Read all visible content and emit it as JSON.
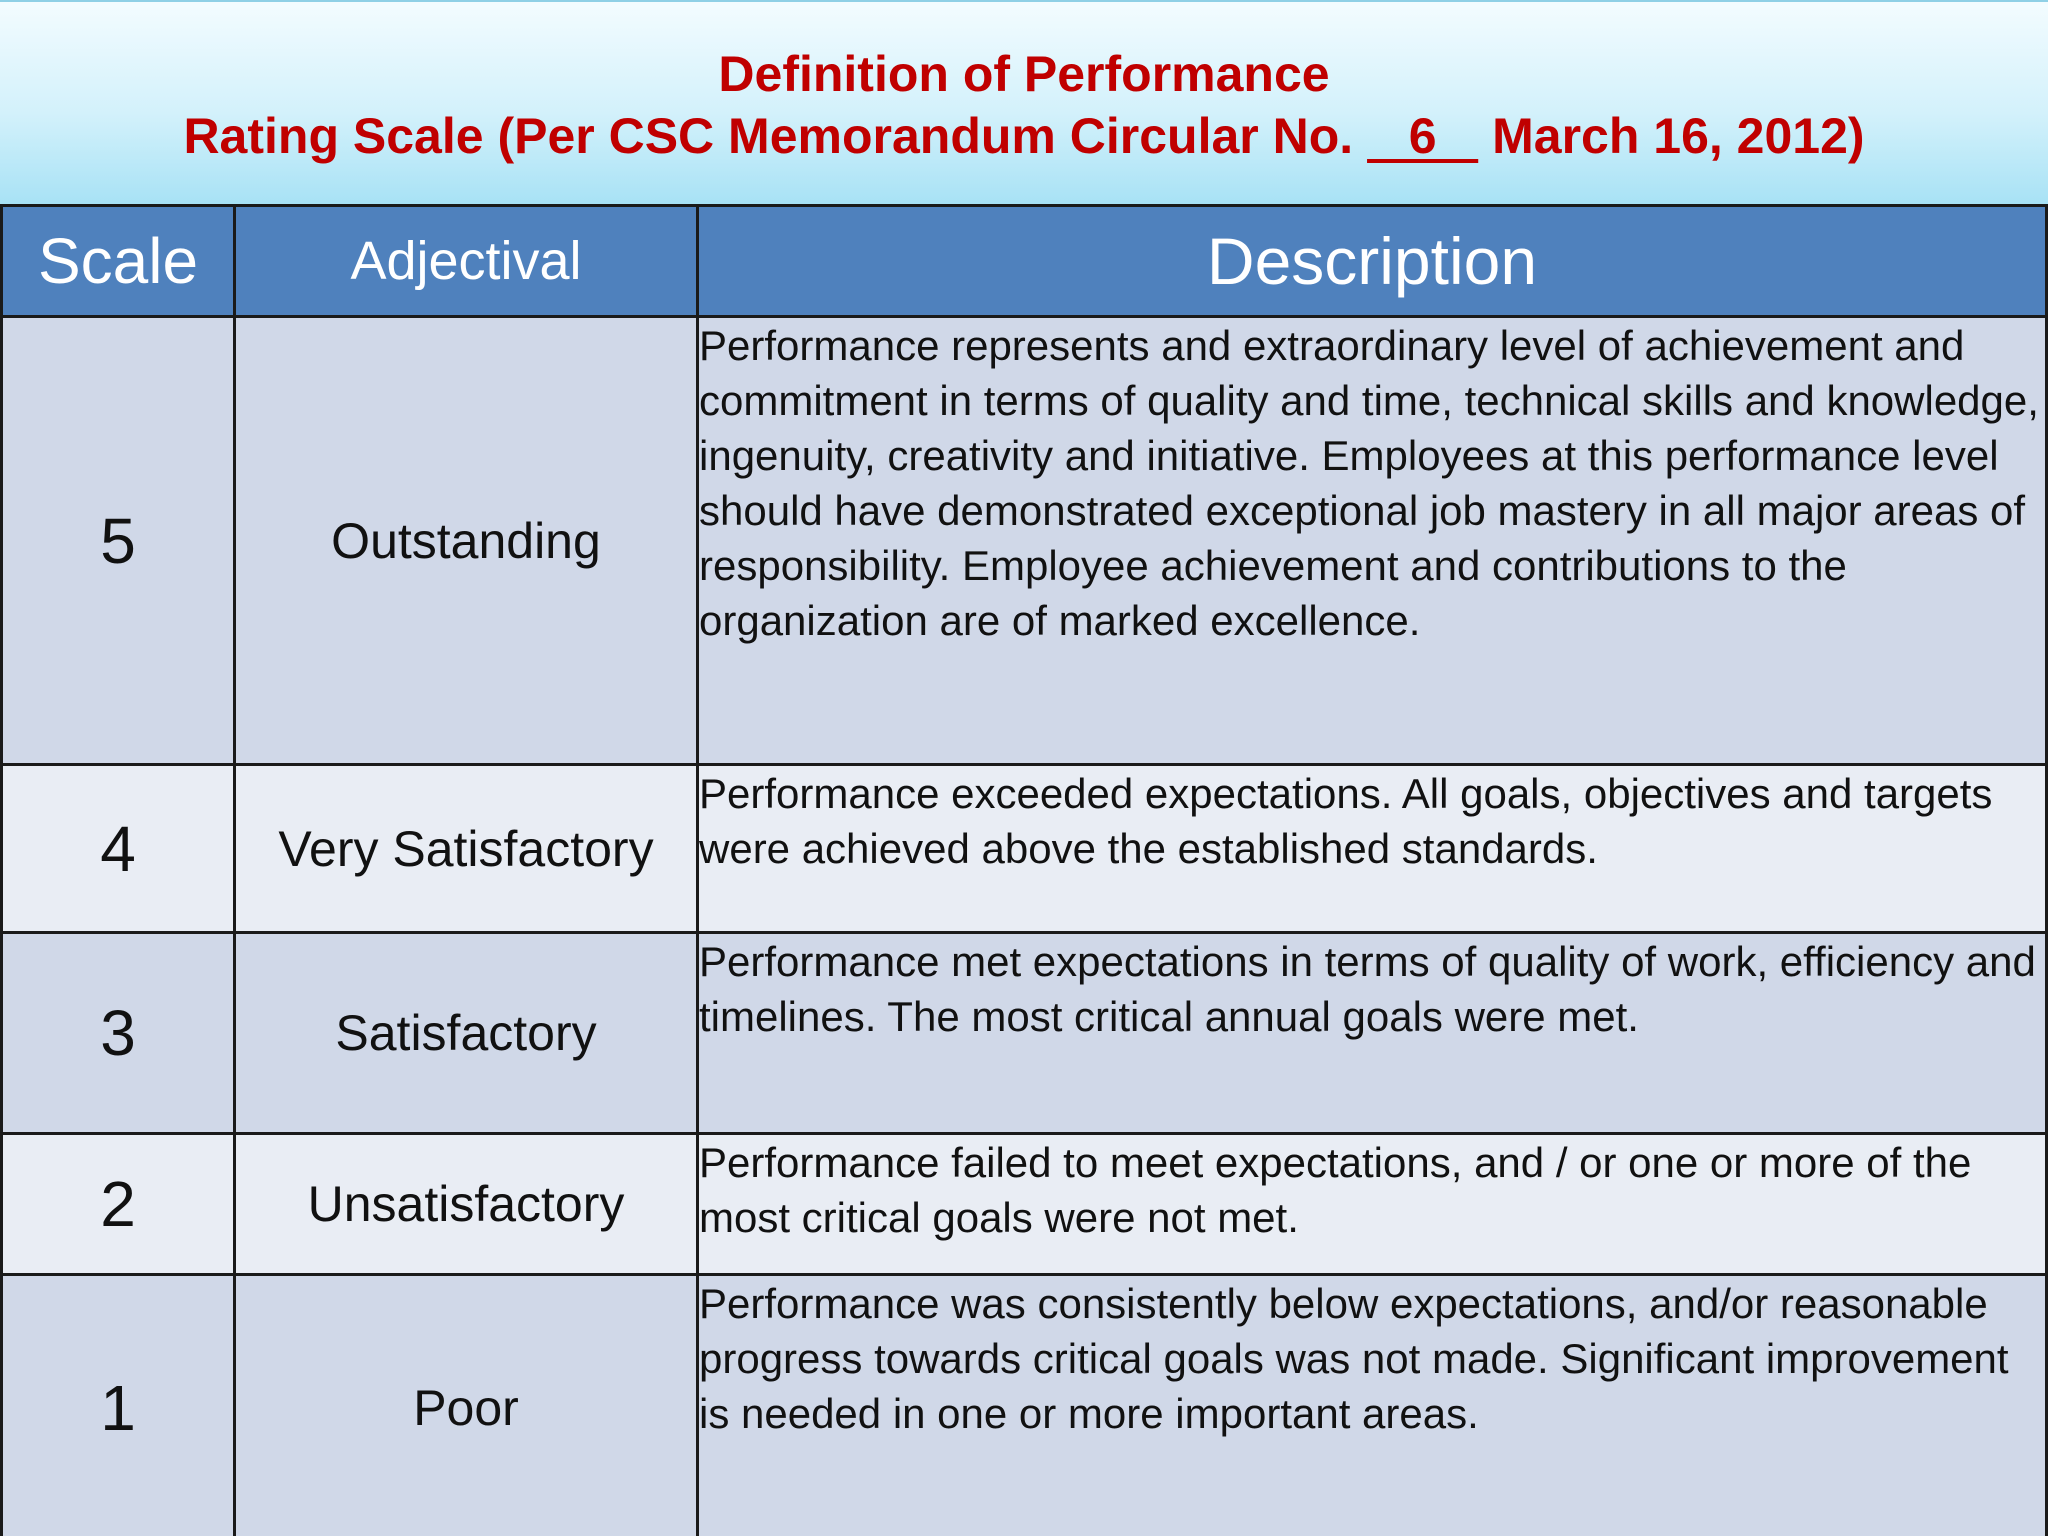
{
  "title": {
    "line1": "Definition of Performance",
    "line2_prefix": "Rating Scale (Per CSC Memorandum Circular No. ",
    "circular_number": "   6   ",
    "line2_suffix": " March 16, 2012)"
  },
  "table": {
    "headers": {
      "scale": "Scale",
      "adjectival": "Adjectival",
      "description": "Description"
    },
    "rows": [
      {
        "scale": "5",
        "adjectival": "Outstanding",
        "description": "Performance represents and extraordinary level of achievement and commitment in terms of quality and time, technical skills and knowledge, ingenuity, creativity and initiative. Employees at this performance level should have demonstrated exceptional job mastery in all major areas of responsibility. Employee achievement and contributions to the organization are of marked excellence."
      },
      {
        "scale": "4",
        "adjectival": "Very Satisfactory",
        "description": "Performance exceeded expectations. All goals, objectives and targets were achieved above the established standards."
      },
      {
        "scale": "3",
        "adjectival": "Satisfactory",
        "description": "Performance met expectations in terms of quality of work, efficiency and timelines. The most critical annual goals were met."
      },
      {
        "scale": "2",
        "adjectival": "Unsatisfactory",
        "description": "Performance failed to meet expectations, and / or one or more of the most critical goals were not met."
      },
      {
        "scale": "1",
        "adjectival": "Poor",
        "description": "Performance was consistently below expectations, and/or reasonable progress towards critical goals was not made. Significant improvement is needed in one or more important areas."
      }
    ]
  },
  "colors": {
    "title_text": "#c00000",
    "header_background": "#4f81bd",
    "row_dark": "#d0d8e8",
    "row_light": "#e9edf4"
  }
}
